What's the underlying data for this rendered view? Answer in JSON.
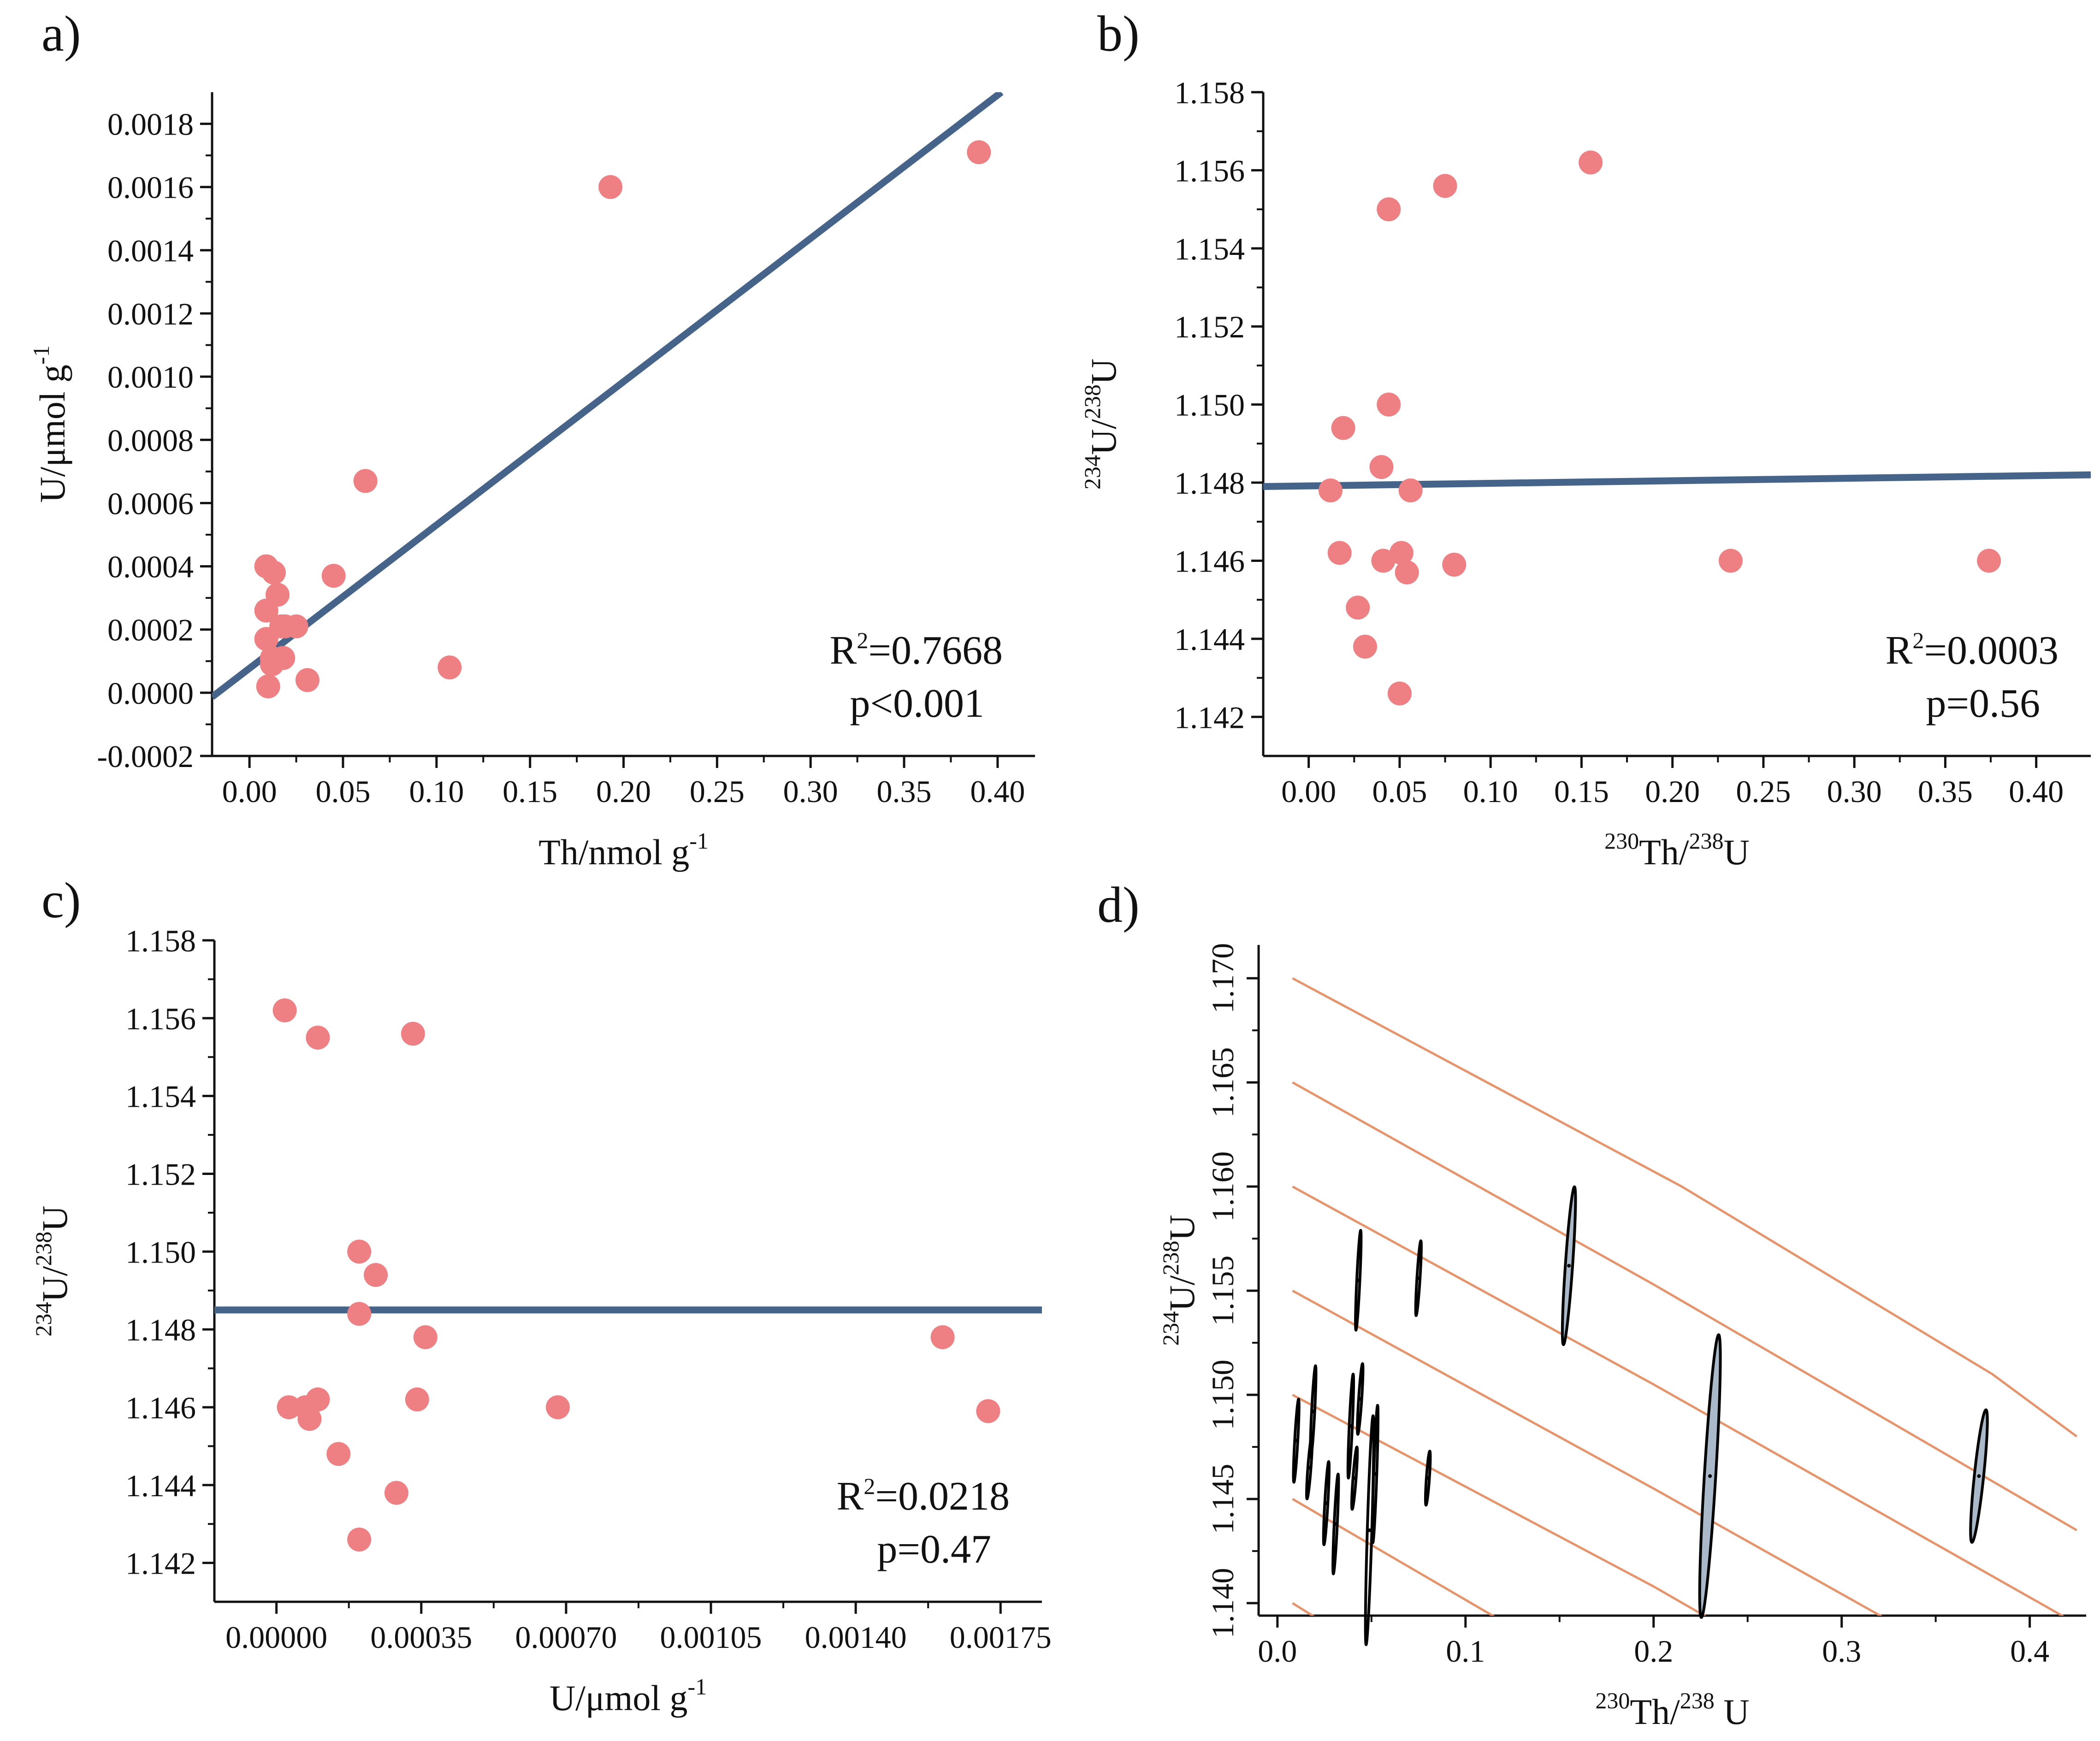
{
  "colors": {
    "point": "#ee8084",
    "fit_line": "#46648a",
    "isochron": "#e6946c",
    "ellipse_fill": "#a9b9c9",
    "axis": "#111111"
  },
  "chart_data": [
    {
      "id": "a",
      "type": "scatter",
      "panel_label": "a)",
      "xlabel": "Th/nmol g",
      "xlabel_sup": "-1",
      "ylabel": "U/μmol g",
      "ylabel_sup": "-1",
      "xlim": [
        -0.02,
        0.42
      ],
      "ylim": [
        -0.0002,
        0.0019
      ],
      "xticks": [
        0.0,
        0.05,
        0.1,
        0.15,
        0.2,
        0.25,
        0.3,
        0.35,
        0.4
      ],
      "xtick_labels": [
        "0.00",
        "0.05",
        "0.10",
        "0.15",
        "0.20",
        "0.25",
        "0.30",
        "0.35",
        "0.40"
      ],
      "yticks": [
        -0.0002,
        0.0,
        0.0002,
        0.0004,
        0.0006,
        0.0008,
        0.001,
        0.0012,
        0.0014,
        0.0016,
        0.0018
      ],
      "ytick_labels": [
        "-0.0002",
        "0.0000",
        "0.0002",
        "0.0004",
        "0.0006",
        "0.0008",
        "0.0010",
        "0.0012",
        "0.0014",
        "0.0016",
        "0.0018"
      ],
      "points": [
        [
          0.009,
          0.0004
        ],
        [
          0.013,
          0.00038
        ],
        [
          0.015,
          0.00031
        ],
        [
          0.009,
          0.00026
        ],
        [
          0.017,
          0.00021
        ],
        [
          0.019,
          0.00021
        ],
        [
          0.025,
          0.00021
        ],
        [
          0.009,
          0.00017
        ],
        [
          0.012,
          0.00011
        ],
        [
          0.012,
          9e-05
        ],
        [
          0.018,
          0.00011
        ],
        [
          0.01,
          2e-05
        ],
        [
          0.031,
          4e-05
        ],
        [
          0.045,
          0.00037
        ],
        [
          0.062,
          0.00067
        ],
        [
          0.107,
          8e-05
        ],
        [
          0.193,
          0.0016
        ],
        [
          0.39,
          0.00171
        ]
      ],
      "fit_line": [
        [
          -0.02,
          -1.34e-05
        ],
        [
          0.402,
          0.0019
        ]
      ],
      "stats": [
        "=0.7668",
        "p<0.001"
      ],
      "stat_prefix": "R",
      "stat_sup": "2"
    },
    {
      "id": "b",
      "type": "scatter",
      "panel_label": "b)",
      "xlabel_sup": "230",
      "xlabel": "Th/",
      "xlabel_sup2": "238",
      "xlabel_tail": "U",
      "ylabel_sup": "234",
      "ylabel": "U/",
      "ylabel_sup2": "238",
      "ylabel_tail": "U",
      "xlim": [
        -0.025,
        0.43
      ],
      "ylim": [
        1.141,
        1.158
      ],
      "xticks": [
        0.0,
        0.05,
        0.1,
        0.15,
        0.2,
        0.25,
        0.3,
        0.35,
        0.4
      ],
      "xtick_labels": [
        "0.00",
        "0.05",
        "0.10",
        "0.15",
        "0.20",
        "0.25",
        "0.30",
        "0.35",
        "0.40"
      ],
      "yticks": [
        1.142,
        1.144,
        1.146,
        1.148,
        1.15,
        1.152,
        1.154,
        1.156,
        1.158
      ],
      "ytick_labels": [
        "1.142",
        "1.144",
        "1.146",
        "1.148",
        "1.150",
        "1.152",
        "1.154",
        "1.156",
        "1.158"
      ],
      "points": [
        [
          0.012,
          1.1478
        ],
        [
          0.019,
          1.1494
        ],
        [
          0.017,
          1.1462
        ],
        [
          0.027,
          1.1448
        ],
        [
          0.031,
          1.1438
        ],
        [
          0.04,
          1.1484
        ],
        [
          0.041,
          1.146
        ],
        [
          0.044,
          1.155
        ],
        [
          0.044,
          1.15
        ],
        [
          0.05,
          1.1426
        ],
        [
          0.051,
          1.1462
        ],
        [
          0.054,
          1.1457
        ],
        [
          0.056,
          1.1478
        ],
        [
          0.075,
          1.1556
        ],
        [
          0.08,
          1.1459
        ],
        [
          0.155,
          1.1562
        ],
        [
          0.232,
          1.146
        ],
        [
          0.374,
          1.146
        ]
      ],
      "fit_line": [
        [
          -0.025,
          1.1479
        ],
        [
          0.43,
          1.1482
        ]
      ],
      "stats": [
        "=0.0003",
        "p=0.56"
      ],
      "stat_prefix": "R",
      "stat_sup": "2"
    },
    {
      "id": "c",
      "type": "scatter",
      "panel_label": "c)",
      "xlabel": "U/μmol g",
      "xlabel_sup": "-1",
      "ylabel_sup": "234",
      "ylabel": "U/",
      "ylabel_sup2": "238",
      "ylabel_tail": "U",
      "xlim": [
        -0.00015,
        0.00185
      ],
      "ylim": [
        1.141,
        1.158
      ],
      "xticks": [
        0.0,
        0.00035,
        0.0007,
        0.00105,
        0.0014,
        0.00175
      ],
      "xtick_labels": [
        "0.00000",
        "0.00035",
        "0.00070",
        "0.00105",
        "0.00140",
        "0.00175"
      ],
      "yticks": [
        1.142,
        1.144,
        1.146,
        1.148,
        1.15,
        1.152,
        1.154,
        1.156,
        1.158
      ],
      "ytick_labels": [
        "1.142",
        "1.144",
        "1.146",
        "1.148",
        "1.150",
        "1.152",
        "1.154",
        "1.156",
        "1.158"
      ],
      "points": [
        [
          2e-05,
          1.1562
        ],
        [
          3e-05,
          1.146
        ],
        [
          7e-05,
          1.146
        ],
        [
          8e-05,
          1.1457
        ],
        [
          0.0001,
          1.1462
        ],
        [
          0.0001,
          1.1555
        ],
        [
          0.00015,
          1.1448
        ],
        [
          0.0002,
          1.1426
        ],
        [
          0.0002,
          1.1484
        ],
        [
          0.0002,
          1.15
        ],
        [
          0.00024,
          1.1494
        ],
        [
          0.00029,
          1.1438
        ],
        [
          0.00033,
          1.1556
        ],
        [
          0.00034,
          1.1462
        ],
        [
          0.00036,
          1.1478
        ],
        [
          0.00068,
          1.146
        ],
        [
          0.00161,
          1.1478
        ],
        [
          0.00172,
          1.1459
        ]
      ],
      "fit_line": [
        [
          -0.00015,
          1.1485
        ],
        [
          0.00185,
          1.1485
        ]
      ],
      "stats": [
        "=0.0218",
        "p=0.47"
      ],
      "stat_prefix": "R",
      "stat_sup": "2"
    },
    {
      "id": "d",
      "type": "scatter",
      "panel_label": "d)",
      "xlabel_sup": "230",
      "xlabel": "Th/",
      "xlabel_sup2": "238",
      "xlabel_tail": " U",
      "ylabel_sup": "234",
      "ylabel": "U/",
      "ylabel_sup2": "238",
      "ylabel_tail": "U",
      "xlim": [
        -0.01,
        0.43
      ],
      "ylim": [
        1.1394,
        1.1716
      ],
      "xticks": [
        0.0,
        0.1,
        0.2,
        0.3,
        0.4
      ],
      "xtick_labels": [
        "0.0",
        "0.1",
        "0.2",
        "0.3",
        "0.4"
      ],
      "yticks": [
        1.14,
        1.145,
        1.15,
        1.155,
        1.16,
        1.165,
        1.17
      ],
      "ytick_labels": [
        "1.140",
        "1.145",
        "1.150",
        "1.155",
        "1.160",
        "1.165",
        "1.170"
      ],
      "isochrons": [
        [
          [
            0.008,
            1.17
          ],
          [
            0.215,
            1.16
          ],
          [
            0.38,
            1.151
          ],
          [
            0.425,
            1.148
          ]
        ],
        [
          [
            0.008,
            1.165
          ],
          [
            0.2,
            1.1553
          ],
          [
            0.425,
            1.1435
          ]
        ],
        [
          [
            0.008,
            1.16
          ],
          [
            0.2,
            1.1505
          ],
          [
            0.425,
            1.139
          ]
        ],
        [
          [
            0.008,
            1.155
          ],
          [
            0.2,
            1.1455
          ],
          [
            0.36,
            1.1374
          ]
        ],
        [
          [
            0.008,
            1.15
          ],
          [
            0.2,
            1.1408
          ],
          [
            0.3,
            1.1356
          ]
        ],
        [
          [
            0.008,
            1.145
          ],
          [
            0.16,
            1.137
          ]
        ],
        [
          [
            0.008,
            1.14
          ],
          [
            0.07,
            1.1365
          ]
        ]
      ],
      "ellipses": [
        {
          "x": 0.01,
          "y": 1.1478,
          "dx": 0.0015,
          "dy": 0.002,
          "filled": false
        },
        {
          "x": 0.017,
          "y": 1.1465,
          "dx": 0.0015,
          "dy": 0.0015,
          "filled": false
        },
        {
          "x": 0.019,
          "y": 1.1492,
          "dx": 0.0015,
          "dy": 0.0022,
          "filled": false
        },
        {
          "x": 0.026,
          "y": 1.1448,
          "dx": 0.0015,
          "dy": 0.002,
          "filled": false
        },
        {
          "x": 0.031,
          "y": 1.1438,
          "dx": 0.0015,
          "dy": 0.0024,
          "filled": false
        },
        {
          "x": 0.039,
          "y": 1.1485,
          "dx": 0.0015,
          "dy": 0.0025,
          "filled": false
        },
        {
          "x": 0.041,
          "y": 1.146,
          "dx": 0.0015,
          "dy": 0.0015,
          "filled": false
        },
        {
          "x": 0.043,
          "y": 1.1555,
          "dx": 0.0015,
          "dy": 0.0024,
          "filled": false
        },
        {
          "x": 0.044,
          "y": 1.1498,
          "dx": 0.0015,
          "dy": 0.0017,
          "filled": false
        },
        {
          "x": 0.049,
          "y": 1.1435,
          "dx": 0.0022,
          "dy": 0.0055,
          "filled": false
        },
        {
          "x": 0.052,
          "y": 1.1462,
          "dx": 0.0015,
          "dy": 0.0033,
          "filled": false
        },
        {
          "x": 0.075,
          "y": 1.1556,
          "dx": 0.0015,
          "dy": 0.0018,
          "filled": false
        },
        {
          "x": 0.08,
          "y": 1.146,
          "dx": 0.0012,
          "dy": 0.0013,
          "filled": false
        },
        {
          "x": 0.155,
          "y": 1.1562,
          "dx": 0.0035,
          "dy": 0.0038,
          "filled": true
        },
        {
          "x": 0.23,
          "y": 1.1461,
          "dx": 0.0055,
          "dy": 0.0068,
          "filled": true
        },
        {
          "x": 0.373,
          "y": 1.1461,
          "dx": 0.0045,
          "dy": 0.0032,
          "filled": true
        }
      ]
    }
  ]
}
